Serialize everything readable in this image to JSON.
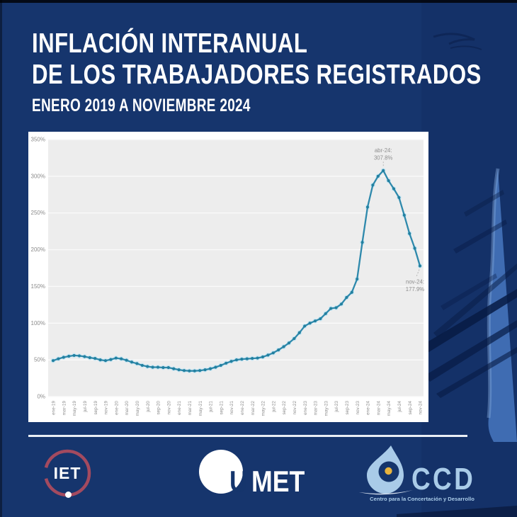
{
  "title": {
    "line1": "INFLACIÓN INTERANUAL",
    "line2": "DE LOS TRABAJADORES REGISTRADOS",
    "line3": "ENERO 2019 A NOVIEMBRE 2024"
  },
  "chart_data": {
    "type": "line",
    "title": "Inflación interanual de los trabajadores registrados",
    "x": [
      "ene-19",
      "feb-19",
      "mar-19",
      "abr-19",
      "may-19",
      "jun-19",
      "jul-19",
      "ago-19",
      "sep-19",
      "oct-19",
      "nov-19",
      "dic-19",
      "ene-20",
      "feb-20",
      "mar-20",
      "abr-20",
      "may-20",
      "jun-20",
      "jul-20",
      "ago-20",
      "sep-20",
      "oct-20",
      "nov-20",
      "dic-20",
      "ene-21",
      "feb-21",
      "mar-21",
      "abr-21",
      "may-21",
      "jun-21",
      "jul-21",
      "ago-21",
      "sep-21",
      "oct-21",
      "nov-21",
      "dic-21",
      "ene-22",
      "feb-22",
      "mar-22",
      "abr-22",
      "may-22",
      "jun-22",
      "jul-22",
      "ago-22",
      "sep-22",
      "oct-22",
      "nov-22",
      "dic-22",
      "ene-23",
      "feb-23",
      "mar-23",
      "abr-23",
      "may-23",
      "jun-23",
      "jul-23",
      "ago-23",
      "sep-23",
      "oct-23",
      "nov-23",
      "dic-23",
      "ene-24",
      "feb-24",
      "mar-24",
      "abr-24",
      "may-24",
      "jun-24",
      "jul-24",
      "ago-24",
      "sep-24",
      "oct-24",
      "nov-24"
    ],
    "series": [
      {
        "name": "Inflación interanual",
        "values": [
          49,
          51.5,
          53.5,
          55,
          56,
          55.5,
          54.5,
          53,
          52,
          50,
          49,
          50.5,
          52.5,
          51.5,
          49.5,
          47,
          45,
          42.5,
          41,
          40,
          40,
          39.5,
          39.5,
          38,
          36.5,
          35.5,
          35,
          35,
          35.5,
          36.5,
          38,
          40,
          42.5,
          45.5,
          48,
          50,
          51,
          51.5,
          52,
          52.5,
          54,
          56.5,
          59.5,
          63.5,
          68,
          73,
          79,
          87,
          96,
          100,
          103,
          106,
          113,
          120,
          121,
          126,
          135,
          142,
          160,
          210,
          258,
          288,
          300,
          307.8,
          294,
          283,
          271,
          247,
          222,
          202,
          177.9
        ]
      }
    ],
    "ylim": [
      0,
      350
    ],
    "y_ticks": [
      "0%",
      "50%",
      "100%",
      "150%",
      "200%",
      "250%",
      "300%",
      "350%"
    ],
    "x_tick_step": 2,
    "grid": true,
    "legend_position": "none",
    "line_color": "#2e89ac",
    "dot_color": "#23809f",
    "halo_color": "#c9e7f4",
    "plot_bg": "#ededed",
    "axis_text_color": "#8c8c8c",
    "annotation_text_color": "#8f8f8f",
    "annotations": [
      {
        "index": 63,
        "label_line1": "abr-24:",
        "label_line2": "307.8%",
        "position": "above"
      },
      {
        "index": 70,
        "label_line1": "nov-24:",
        "label_line2": "177.9%",
        "position": "below"
      }
    ]
  },
  "footer": {
    "iet": {
      "label": "IET",
      "ring_color": "#a34a5f"
    },
    "umet": {
      "u": "U",
      "met": "MET"
    },
    "ccd": {
      "label": "CCD",
      "tagline": "Centro para la Concertación y Desarrollo",
      "accent": "#a9cbe8",
      "gold": "#e8b43d"
    }
  },
  "colors": {
    "background": "#16356d",
    "card": "#ffffff",
    "title_text": "#ffffff"
  }
}
